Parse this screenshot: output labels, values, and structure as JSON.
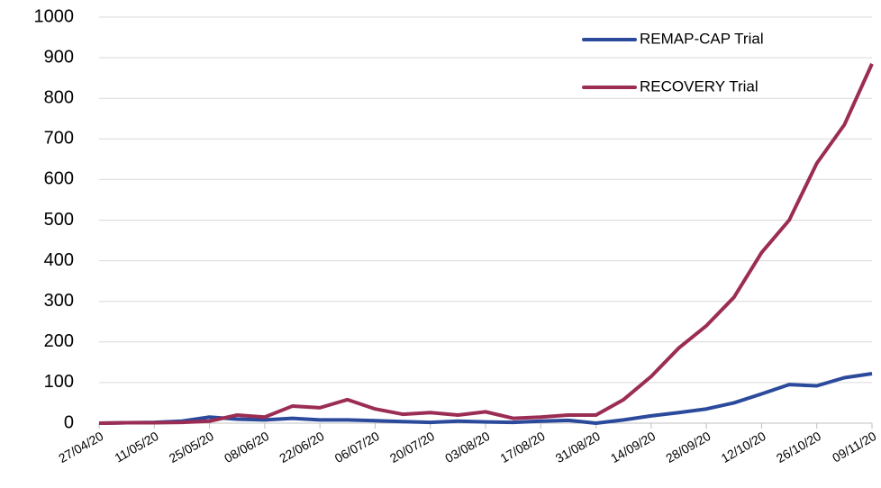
{
  "chart_data": {
    "type": "line",
    "categories": [
      "27/04/20",
      null,
      "11/05/20",
      null,
      "25/05/20",
      null,
      "08/06/20",
      null,
      "22/06/20",
      null,
      "06/07/20",
      null,
      "20/07/20",
      null,
      "03/08/20",
      null,
      "17/08/20",
      null,
      "31/08/20",
      null,
      "14/09/20",
      null,
      "28/09/20",
      null,
      "12/10/20",
      null,
      "26/10/20",
      null,
      "09/11/20"
    ],
    "series": [
      {
        "name": "REMAP-CAP Trial",
        "color": "#2b4a9c",
        "values": [
          0,
          1,
          2,
          5,
          15,
          10,
          8,
          12,
          8,
          8,
          6,
          4,
          2,
          5,
          3,
          2,
          5,
          7,
          0,
          8,
          18,
          26,
          35,
          50,
          72,
          95,
          92,
          112,
          122
        ]
      },
      {
        "name": "RECOVERY Trial",
        "color": "#9b2d55",
        "values": [
          0,
          1,
          1,
          2,
          5,
          20,
          15,
          42,
          38,
          58,
          35,
          22,
          26,
          20,
          28,
          12,
          15,
          20,
          20,
          58,
          115,
          185,
          240,
          310,
          420,
          500,
          640,
          735,
          885
        ]
      }
    ],
    "ylim": [
      0,
      1000
    ],
    "yticks": [
      0,
      100,
      200,
      300,
      400,
      500,
      600,
      700,
      800,
      900,
      1000
    ],
    "grid": true,
    "legend": "upper right"
  }
}
